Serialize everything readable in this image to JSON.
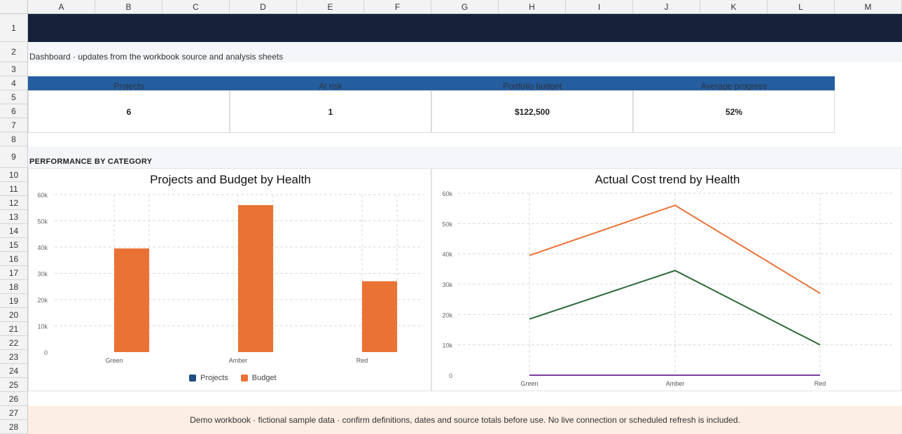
{
  "sheet": {
    "columns": [
      "A",
      "B",
      "C",
      "D",
      "E",
      "F",
      "G",
      "H",
      "I",
      "J",
      "K",
      "L",
      "M"
    ],
    "rows": [
      "1",
      "2",
      "3",
      "4",
      "5",
      "6",
      "7",
      "8",
      "9",
      "10",
      "11",
      "12",
      "13",
      "14",
      "15",
      "16",
      "17",
      "18",
      "19",
      "20",
      "21",
      "22",
      "23",
      "24",
      "25",
      "26",
      "27",
      "28"
    ]
  },
  "header": {
    "subtitle": "Dashboard · updates from the workbook source and analysis sheets"
  },
  "kpis": [
    {
      "label": "Projects",
      "value": "6"
    },
    {
      "label": "At risk",
      "value": "1"
    },
    {
      "label": "Portfolio budget",
      "value": "$122,500"
    },
    {
      "label": "Average progress",
      "value": "52%"
    }
  ],
  "section": {
    "title": "PERFORMANCE BY CATEGORY"
  },
  "colors": {
    "banner": "#16213a",
    "kpi_header": "#245e9f",
    "projects": "#1f4e85",
    "budget": "#ea7235",
    "green_line": "#2d6a35",
    "purple_line": "#7b3b9e",
    "footer_bg": "#fdeee4"
  },
  "chart_data": [
    {
      "type": "bar",
      "title": "Projects and Budget by Health",
      "categories": [
        "Green",
        "Amber",
        "Red"
      ],
      "series": [
        {
          "name": "Projects",
          "values": [
            3,
            2,
            1
          ],
          "color": "#1f4e85"
        },
        {
          "name": "Budget",
          "values": [
            39500,
            56000,
            27000
          ],
          "color": "#ea7235"
        }
      ],
      "ylim": [
        0,
        60000
      ],
      "yticks": [
        "0",
        "10k",
        "20k",
        "30k",
        "40k",
        "50k",
        "60k"
      ],
      "legend": "bottom",
      "grid": true
    },
    {
      "type": "line",
      "title": "Actual Cost trend by Health",
      "categories": [
        "Green",
        "Amber",
        "Red"
      ],
      "series": [
        {
          "values": [
            39500,
            56000,
            27000
          ],
          "color": "#ea7235"
        },
        {
          "values": [
            18500,
            34500,
            10000
          ],
          "color": "#2d6a35"
        },
        {
          "values": [
            0,
            0,
            0
          ],
          "color": "#7b3b9e"
        }
      ],
      "ylim": [
        0,
        60000
      ],
      "yticks": [
        "0",
        "10k",
        "20k",
        "30k",
        "40k",
        "50k",
        "60k"
      ],
      "grid": true
    }
  ],
  "footer": {
    "text": "Demo workbook · fictional sample data · confirm definitions, dates and source totals before use. No live connection or scheduled refresh is included."
  }
}
